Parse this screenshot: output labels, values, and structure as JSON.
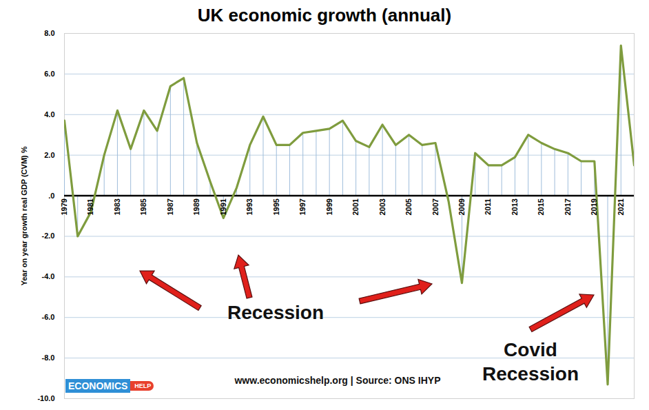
{
  "chart_data": {
    "type": "line",
    "title": "UK economic growth (annual)",
    "y_label": "Year on year growth real GDP (CVM) %",
    "x": [
      1979,
      1980,
      1981,
      1982,
      1983,
      1984,
      1985,
      1986,
      1987,
      1988,
      1989,
      1990,
      1991,
      1992,
      1993,
      1994,
      1995,
      1996,
      1997,
      1998,
      1999,
      2000,
      2001,
      2002,
      2003,
      2004,
      2005,
      2006,
      2007,
      2008,
      2009,
      2010,
      2011,
      2012,
      2013,
      2014,
      2015,
      2016,
      2017,
      2018,
      2019,
      2020,
      2021,
      2022
    ],
    "values": [
      3.7,
      -2.0,
      -0.8,
      2.0,
      4.2,
      2.3,
      4.2,
      3.2,
      5.4,
      5.8,
      2.6,
      0.7,
      -1.1,
      0.4,
      2.5,
      3.9,
      2.5,
      2.5,
      3.1,
      3.2,
      3.3,
      3.7,
      2.7,
      2.4,
      3.5,
      2.5,
      3.0,
      2.5,
      2.6,
      -0.3,
      -4.3,
      2.1,
      1.5,
      1.5,
      1.9,
      3.0,
      2.6,
      2.3,
      2.1,
      1.7,
      1.7,
      -9.3,
      7.4,
      1.5
    ],
    "color": "#7f9c3e",
    "xlim": [
      1979,
      2022
    ],
    "xticks": [
      1979,
      1981,
      1983,
      1985,
      1987,
      1989,
      1991,
      1993,
      1995,
      1997,
      1999,
      2001,
      2003,
      2005,
      2007,
      2009,
      2011,
      2013,
      2015,
      2017,
      2019,
      2021
    ],
    "ylim": [
      -10,
      8
    ],
    "yticks": [
      {
        "value": -10,
        "label": "-10.0"
      },
      {
        "value": -8,
        "label": "-8.0"
      },
      {
        "value": -6,
        "label": "-6.0"
      },
      {
        "value": -4,
        "label": "-4.0"
      },
      {
        "value": -2,
        "label": "-2.0"
      },
      {
        "value": 0,
        "label": ".0"
      },
      {
        "value": 2,
        "label": "2.0"
      },
      {
        "value": 4,
        "label": "4.0"
      },
      {
        "value": 6,
        "label": "6.0"
      },
      {
        "value": 8,
        "label": "8.0"
      }
    ],
    "grid": true,
    "annotations": [
      "Recession",
      "Covid Recession"
    ],
    "source": "www.economicshelp.org | Source: ONS IHYP",
    "logo": [
      "ECONOMICS",
      "HELP"
    ]
  }
}
